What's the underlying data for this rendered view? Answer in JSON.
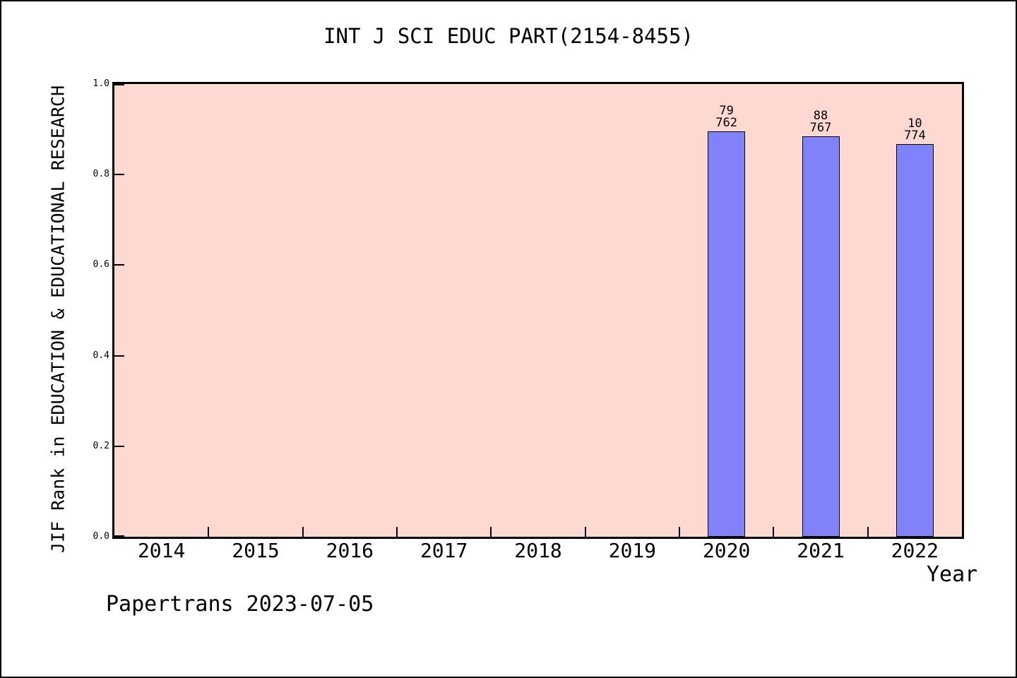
{
  "title": "INT J SCI EDUC PART(2154-8455)",
  "footer": "Papertrans 2023-07-05",
  "chart_data": {
    "type": "bar",
    "title": "INT J SCI EDUC PART(2154-8455)",
    "xlabel": "Year",
    "ylabel": "JIF Rank in EDUCATION & EDUCATIONAL RESEARCH",
    "categories": [
      "2014",
      "2015",
      "2016",
      "2017",
      "2018",
      "2019",
      "2020",
      "2021",
      "2022"
    ],
    "yticks": [
      "0.0",
      "0.2",
      "0.4",
      "0.6",
      "0.8",
      "1.0"
    ],
    "ylim": [
      0.0,
      1.0
    ],
    "grid": false,
    "legend": "none",
    "bars": [
      {
        "year": "2020",
        "label_top": "79",
        "label_bottom": "762",
        "value": 0.896
      },
      {
        "year": "2021",
        "label_top": "88",
        "label_bottom": "767",
        "value": 0.885
      },
      {
        "year": "2022",
        "label_top": "10",
        "label_bottom": "774",
        "value": 0.868
      }
    ],
    "colors": {
      "plot_background": "#FDD9D2",
      "bar_fill": "#8181F9",
      "bar_edge": "#000000",
      "axis": "#000000",
      "text": "#000000"
    }
  }
}
